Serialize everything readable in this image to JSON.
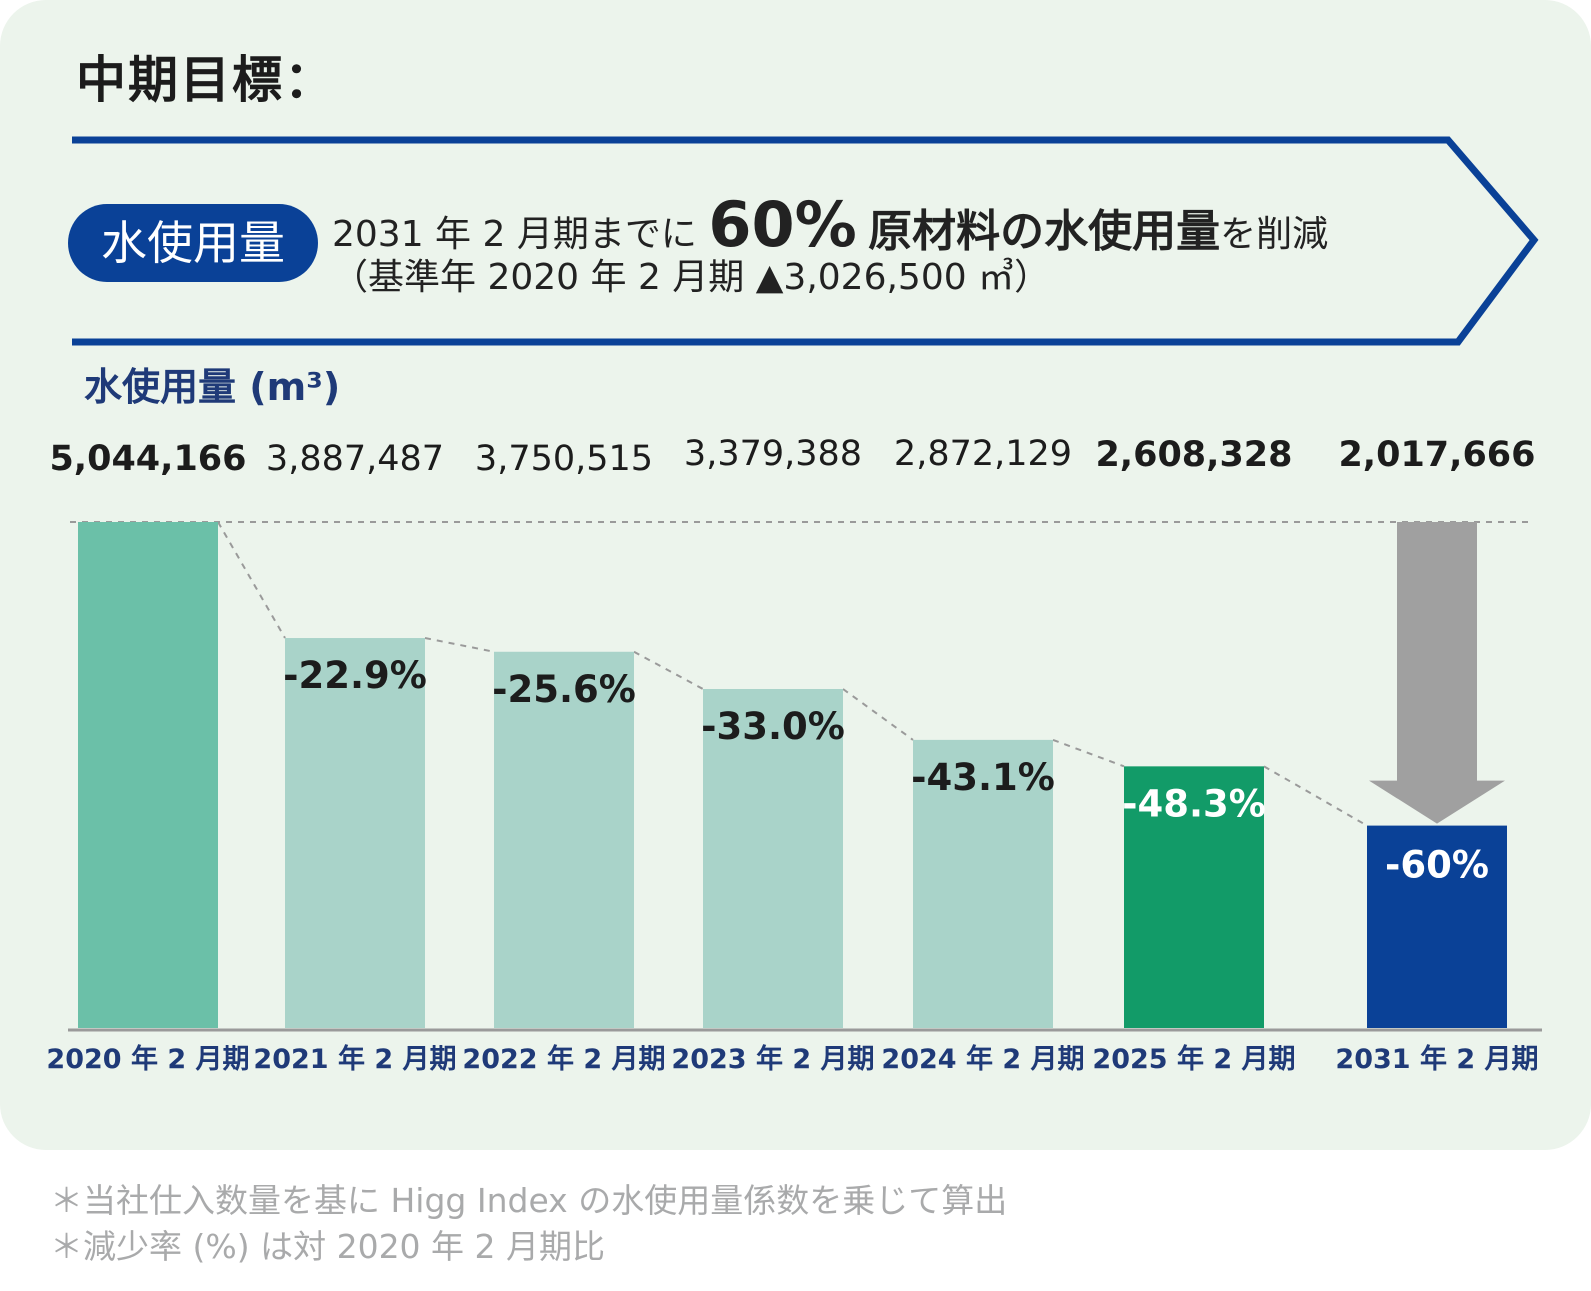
{
  "heading": "中期目標：",
  "goal": {
    "badge": "水使用量",
    "line1_prefix": "2031 年 2 月期までに",
    "line1_pct": "60%",
    "line1_emph": "原材料の水使用量",
    "line1_suffix": "を削減",
    "line2": "（基準年 2020 年 2 月期 ▲3,026,500 ㎥）"
  },
  "y_title": "水使用量 (m³)",
  "colors": {
    "base": "#6bc0a8",
    "pale": "#a9d3c9",
    "highlight": "#129b68",
    "target": "#0a4197",
    "arrow": "#a0a0a0",
    "title_blue": "#1f3a78"
  },
  "chart_data": {
    "type": "bar",
    "categories": [
      "2020 年 2 月期",
      "2021 年 2 月期",
      "2022 年 2 月期",
      "2023 年 2 月期",
      "2024 年 2 月期",
      "2025 年 2 月期",
      "2031 年 2 月期"
    ],
    "values": [
      5044166,
      3887487,
      3750515,
      3379388,
      2872129,
      2608328,
      2017666
    ],
    "value_labels": [
      "5,044,166",
      "3,887,487",
      "3,750,515",
      "3,379,388",
      "2,872,129",
      "2,608,328",
      "2,017,666"
    ],
    "change_labels": [
      "",
      "-22.9%",
      "-25.6%",
      "-33.0%",
      "-43.1%",
      "-48.3%",
      "-60%"
    ],
    "bar_colors": [
      "#6bc0a8",
      "#a9d3c9",
      "#a9d3c9",
      "#a9d3c9",
      "#a9d3c9",
      "#129b68",
      "#0a4197"
    ],
    "ylabel": "水使用量 (m³)",
    "ylim": [
      0,
      5044166
    ]
  },
  "notes": [
    "＊当社仕入数量を基に Higg Index の水使用量係数を乗じて算出",
    "＊減少率 (%) は対 2020 年 2 月期比"
  ]
}
